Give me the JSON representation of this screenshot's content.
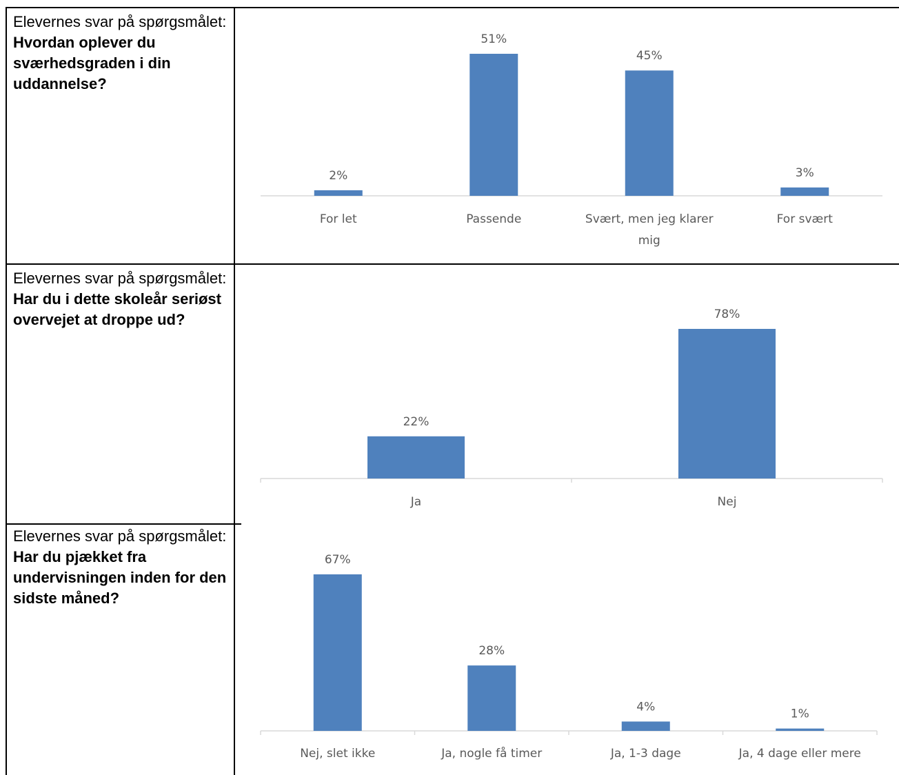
{
  "rows": [
    {
      "prefix": "Elevernes svar på spørgsmålet:",
      "question": "Hvordan oplever du sværhedsgraden i din uddannelse?"
    },
    {
      "prefix": "Elevernes svar på spørgsmålet: ",
      "question": "Har du i dette skoleår seriøst overvejet at droppe ud?"
    },
    {
      "prefix": "Elevernes svar på spørgsmålet:",
      "question": "Har du pjækket fra undervisningen inden for den sidste måned?"
    }
  ],
  "colors": {
    "bar": "#4f81bd",
    "axis": "#d9d9d9",
    "label": "#595959"
  },
  "chart_data": [
    {
      "type": "bar",
      "categories": [
        [
          "For let"
        ],
        [
          "Passende"
        ],
        [
          "Svært, men jeg klarer",
          "mig"
        ],
        [
          "For svært"
        ]
      ],
      "values": [
        2,
        51,
        45,
        3
      ],
      "labels": [
        "2%",
        "51%",
        "45%",
        "3%"
      ],
      "ylim": [
        0,
        51
      ],
      "value_unit": "%"
    },
    {
      "type": "bar",
      "categories": [
        [
          "Ja"
        ],
        [
          "Nej"
        ]
      ],
      "values": [
        22,
        78
      ],
      "labels": [
        "22%",
        "78%"
      ],
      "ylim": [
        0,
        78
      ],
      "value_unit": "%"
    },
    {
      "type": "bar",
      "categories": [
        [
          "Nej, slet ikke"
        ],
        [
          "Ja, nogle få timer"
        ],
        [
          "Ja, 1-3 dage"
        ],
        [
          "Ja, 4 dage eller mere"
        ]
      ],
      "values": [
        67,
        28,
        4,
        1
      ],
      "labels": [
        "67%",
        "28%",
        "4%",
        "1%"
      ],
      "ylim": [
        0,
        67
      ],
      "value_unit": "%"
    }
  ]
}
